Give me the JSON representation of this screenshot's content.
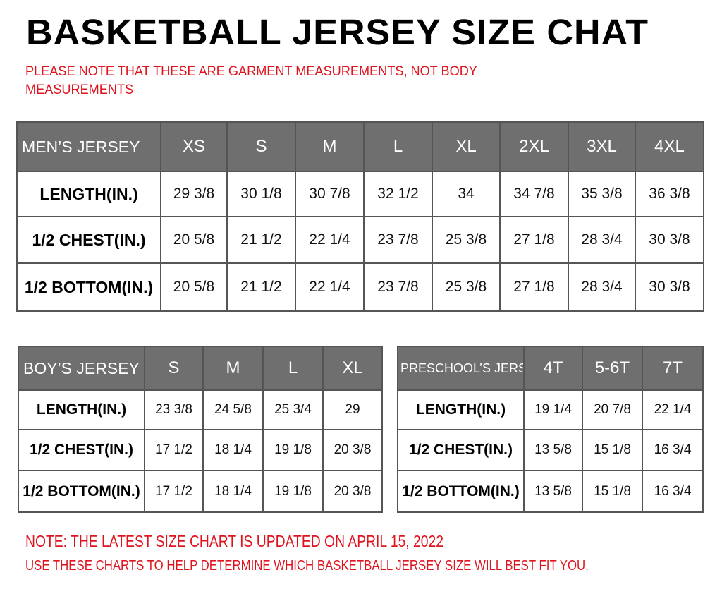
{
  "title": "BASKETBALL JERSEY SIZE CHAT",
  "subtitle": "PLEASE NOTE THAT THESE ARE GARMENT MEASUREMENTS, NOT BODY MEASUREMENTS",
  "colors": {
    "header_bg": "#6f6f6f",
    "note_red": "#e0141e"
  },
  "tables": {
    "men": {
      "header": [
        "MEN’S JERSEY",
        "XS",
        "S",
        "M",
        "L",
        "XL",
        "2XL",
        "3XL",
        "4XL"
      ],
      "rows": [
        [
          "LENGTH(IN.)",
          "29 3/8",
          "30 1/8",
          "30 7/8",
          "32 1/2",
          "34",
          "34 7/8",
          "35 3/8",
          "36 3/8"
        ],
        [
          "1/2 CHEST(IN.)",
          "20 5/8",
          "21 1/2",
          "22 1/4",
          "23 7/8",
          "25 3/8",
          "27 1/8",
          "28 3/4",
          "30 3/8"
        ],
        [
          "1/2 BOTTOM(IN.)",
          "20 5/8",
          "21 1/2",
          "22 1/4",
          "23 7/8",
          "25 3/8",
          "27 1/8",
          "28 3/4",
          "30 3/8"
        ]
      ]
    },
    "boy": {
      "header": [
        "BOY’S JERSEY",
        "S",
        "M",
        "L",
        "XL"
      ],
      "rows": [
        [
          "LENGTH(IN.)",
          "23 3/8",
          "24 5/8",
          "25 3/4",
          "29"
        ],
        [
          "1/2 CHEST(IN.)",
          "17 1/2",
          "18 1/4",
          "19 1/8",
          "20 3/8"
        ],
        [
          "1/2 BOTTOM(IN.)",
          "17 1/2",
          "18 1/4",
          "19 1/8",
          "20 3/8"
        ]
      ]
    },
    "pre": {
      "header": [
        "PRESCHOOL’S JERSEY",
        "4T",
        "5-6T",
        "7T"
      ],
      "rows": [
        [
          "LENGTH(IN.)",
          "19 1/4",
          "20 7/8",
          "22 1/4"
        ],
        [
          "1/2 CHEST(IN.)",
          "13 5/8",
          "15 1/8",
          "16 3/4"
        ],
        [
          "1/2 BOTTOM(IN.)",
          "13 5/8",
          "15 1/8",
          "16 3/4"
        ]
      ]
    }
  },
  "notes": [
    "NOTE: THE LATEST SIZE CHART IS UPDATED ON APRIL 15, 2022",
    "USE THESE CHARTS TO HELP DETERMINE WHICH  BASKETBALL JERSEY  SIZE WILL BEST FIT YOU."
  ]
}
